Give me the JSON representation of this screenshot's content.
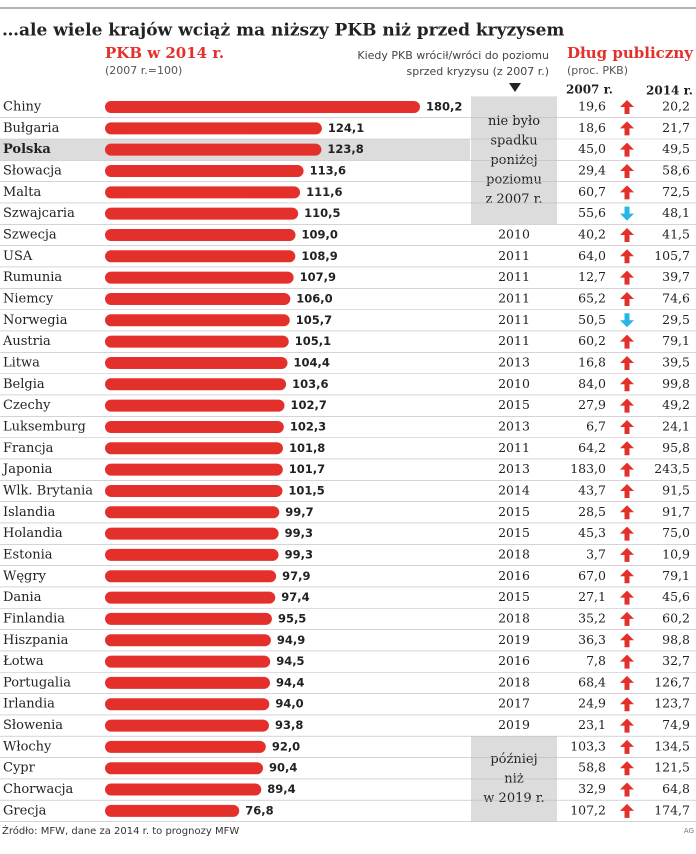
{
  "title": "…ale wiele krajów wciąż ma niższy PKB niż przed kryzysem",
  "chart_data": {
    "type": "bar",
    "title": "PKB w 2014 r.",
    "subtitle": "(2007 r.=100)",
    "color": "#e3302b",
    "highlight": "Polska",
    "categories": [
      "Chiny",
      "Bułgaria",
      "Polska",
      "Słowacja",
      "Malta",
      "Szwajcaria",
      "Szwecja",
      "USA",
      "Rumunia",
      "Niemcy",
      "Norwegia",
      "Austria",
      "Litwa",
      "Belgia",
      "Czechy",
      "Luksemburg",
      "Francja",
      "Japonia",
      "Wlk. Brytania",
      "Islandia",
      "Holandia",
      "Estonia",
      "Węgry",
      "Dania",
      "Finlandia",
      "Hiszpania",
      "Łotwa",
      "Portugalia",
      "Irlandia",
      "Słowenia",
      "Włochy",
      "Cypr",
      "Chorwacja",
      "Grecja"
    ],
    "values": [
      180.2,
      124.1,
      123.8,
      113.6,
      111.6,
      110.5,
      109.0,
      108.9,
      107.9,
      106.0,
      105.7,
      105.1,
      104.4,
      103.6,
      102.7,
      102.3,
      101.8,
      101.7,
      101.5,
      99.7,
      99.3,
      99.3,
      97.9,
      97.4,
      95.5,
      94.9,
      94.5,
      94.4,
      94.0,
      93.8,
      92.0,
      90.4,
      89.4,
      76.8
    ],
    "value_labels": [
      "180,2",
      "124,1",
      "123,8",
      "113,6",
      "111,6",
      "110,5",
      "109,0",
      "108,9",
      "107,9",
      "106,0",
      "105,7",
      "105,1",
      "104,4",
      "103,6",
      "102,7",
      "102,3",
      "101,8",
      "101,7",
      "101,5",
      "99,7",
      "99,3",
      "99,3",
      "97,9",
      "97,4",
      "95,5",
      "94,9",
      "94,5",
      "94,4",
      "94,0",
      "93,8",
      "92,0",
      "90,4",
      "89,4",
      "76,8"
    ]
  },
  "recovery": {
    "header": [
      "Kiedy PKB wrócił/wróci do poziomu",
      "sprzed kryzysu (z 2007 r.)"
    ],
    "years": [
      null,
      null,
      null,
      null,
      null,
      null,
      2010,
      2011,
      2011,
      2011,
      2011,
      2011,
      2013,
      2010,
      2015,
      2013,
      2011,
      2013,
      2014,
      2015,
      2015,
      2018,
      2016,
      2015,
      2018,
      2019,
      2016,
      2018,
      2017,
      2019,
      null,
      null,
      null,
      null
    ],
    "notes": [
      [
        "nie było",
        "spadku",
        "poniżej",
        "poziomu",
        "z 2007 r."
      ],
      [
        "później",
        "niż",
        "w 2019 r."
      ]
    ]
  },
  "debt": {
    "title": "Dług publiczny",
    "subtitle": "(proc. PKB)",
    "columns": [
      "2007 r.",
      "2014 r."
    ],
    "up_color": "#e3302b",
    "down_color": "#29b6e6",
    "rows": [
      [
        "19,6",
        "20,2"
      ],
      [
        "18,6",
        "21,7"
      ],
      [
        "45,0",
        "49,5"
      ],
      [
        "29,4",
        "58,6"
      ],
      [
        "60,7",
        "72,5"
      ],
      [
        "55,6",
        "48,1"
      ],
      [
        "40,2",
        "41,5"
      ],
      [
        "64,0",
        "105,7"
      ],
      [
        "12,7",
        "39,7"
      ],
      [
        "65,2",
        "74,6"
      ],
      [
        "50,5",
        "29,5"
      ],
      [
        "60,2",
        "79,1"
      ],
      [
        "16,8",
        "39,5"
      ],
      [
        "84,0",
        "99,8"
      ],
      [
        "27,9",
        "49,2"
      ],
      [
        "6,7",
        "24,1"
      ],
      [
        "64,2",
        "95,8"
      ],
      [
        "183,0",
        "243,5"
      ],
      [
        "43,7",
        "91,5"
      ],
      [
        "28,5",
        "91,7"
      ],
      [
        "45,3",
        "75,0"
      ],
      [
        "3,7",
        "10,9"
      ],
      [
        "67,0",
        "79,1"
      ],
      [
        "27,1",
        "45,6"
      ],
      [
        "35,2",
        "60,2"
      ],
      [
        "36,3",
        "98,8"
      ],
      [
        "7,8",
        "32,7"
      ],
      [
        "68,4",
        "126,7"
      ],
      [
        "24,9",
        "123,7"
      ],
      [
        "23,1",
        "74,9"
      ],
      [
        "103,3",
        "134,5"
      ],
      [
        "58,8",
        "121,5"
      ],
      [
        "32,9",
        "64,8"
      ],
      [
        "107,2",
        "174,7"
      ]
    ]
  },
  "source": "Źródło: MFW, dane za 2014 r. to prognozy MFW",
  "credit": "AG"
}
